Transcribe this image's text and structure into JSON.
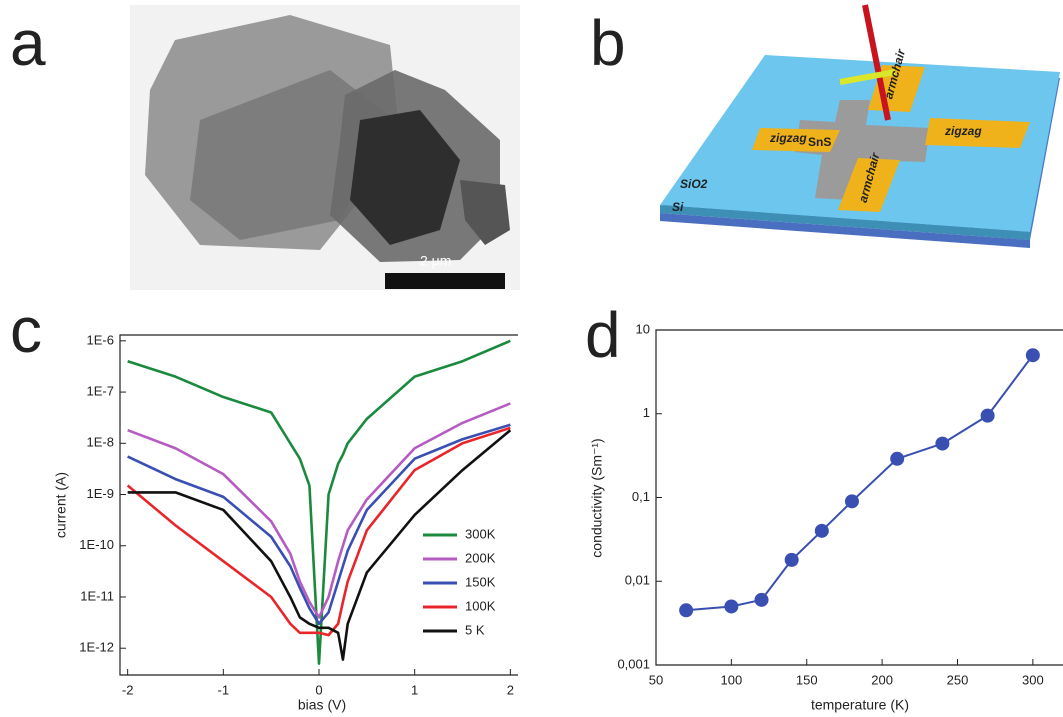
{
  "panel_labels": [
    "a",
    "b",
    "c",
    "d"
  ],
  "image_a": {
    "scale_bar": "2 μm"
  },
  "device_b": {
    "pads": [
      "zigzag",
      "armchair",
      "zigzag",
      "armchair"
    ],
    "channel": "SnS",
    "oxide": "SiO2",
    "substrate": "Si"
  },
  "chart_data": [
    {
      "type": "line",
      "xlabel": "bias (V)",
      "ylabel": "current (A)",
      "log_y": true,
      "markers": false,
      "legend": "lower right",
      "x": [
        -2,
        -1.5,
        -1,
        -0.5,
        -0.3,
        -0.2,
        -0.1,
        0,
        0.1,
        0.2,
        0.25,
        0.3,
        0.5,
        1,
        1.5,
        2
      ],
      "xlim": [
        -2.08,
        2.08
      ],
      "xticks": [
        -2,
        -1,
        0,
        1,
        2
      ],
      "ylim": [
        3e-13,
        1.3e-06
      ],
      "yticks": [
        {
          "value": 1e-12,
          "label": "1E-12"
        },
        {
          "value": 1e-11,
          "label": "1E-11"
        },
        {
          "value": 1e-10,
          "label": "1E-10"
        },
        {
          "value": 1e-09,
          "label": "1E-9"
        },
        {
          "value": 1e-08,
          "label": "1E-8"
        },
        {
          "value": 1e-07,
          "label": "1E-7"
        },
        {
          "value": 1e-06,
          "label": "1E-6"
        }
      ],
      "series": [
        {
          "name": "300K",
          "color": "#1b8a3e",
          "values": [
            4e-07,
            2e-07,
            8e-08,
            4e-08,
            1e-08,
            5e-09,
            1.5e-09,
            5e-13,
            1e-09,
            4e-09,
            6e-09,
            1e-08,
            3e-08,
            2e-07,
            4e-07,
            1e-06
          ]
        },
        {
          "name": "200K",
          "color": "#b45cc2",
          "values": [
            1.8e-08,
            8e-09,
            2.5e-09,
            3e-10,
            7e-11,
            2e-11,
            8e-12,
            4e-12,
            1e-11,
            5e-11,
            1e-10,
            2e-10,
            8e-10,
            8e-09,
            2.5e-08,
            6e-08
          ]
        },
        {
          "name": "150K",
          "color": "#3a4fb2",
          "values": [
            5.5e-09,
            2e-09,
            9e-10,
            1.5e-10,
            4e-11,
            1.5e-11,
            6e-12,
            3e-12,
            5e-12,
            2e-11,
            4e-11,
            8e-11,
            5e-10,
            5e-09,
            1.2e-08,
            2.3e-08
          ]
        },
        {
          "name": "100K",
          "color": "#e8262a",
          "values": [
            1.5e-09,
            2.5e-10,
            5e-11,
            1e-11,
            3e-12,
            2e-12,
            2e-12,
            2e-12,
            1.8e-12,
            3e-12,
            8e-12,
            2e-11,
            2e-10,
            3e-09,
            1e-08,
            2e-08
          ]
        },
        {
          "name": "5 K",
          "color": "#111111",
          "values": [
            1.1e-09,
            1.1e-09,
            5e-10,
            5e-11,
            1e-11,
            4e-12,
            3e-12,
            2.5e-12,
            2.5e-12,
            2e-12,
            6e-13,
            3e-12,
            3e-11,
            4e-10,
            3e-09,
            1.8e-08
          ]
        }
      ]
    },
    {
      "type": "line",
      "xlabel": "temperature (K)",
      "ylabel": "conductivity (Sm⁻¹)",
      "log_y": true,
      "markers": true,
      "x": [
        70,
        100,
        120,
        140,
        160,
        180,
        210,
        240,
        270,
        300
      ],
      "xlim": [
        50,
        320
      ],
      "xticks": [
        50,
        100,
        150,
        200,
        250,
        300
      ],
      "ylim": [
        0.001,
        10
      ],
      "yticks": [
        {
          "value": 0.001,
          "label": "0,001"
        },
        {
          "value": 0.01,
          "label": "0,01"
        },
        {
          "value": 0.1,
          "label": "0,1"
        },
        1,
        10
      ],
      "series": [
        {
          "color": "#3a4fb2",
          "values": [
            0.0045,
            0.005,
            0.006,
            0.018,
            0.04,
            0.09,
            0.29,
            0.44,
            0.95,
            5
          ]
        }
      ]
    }
  ]
}
